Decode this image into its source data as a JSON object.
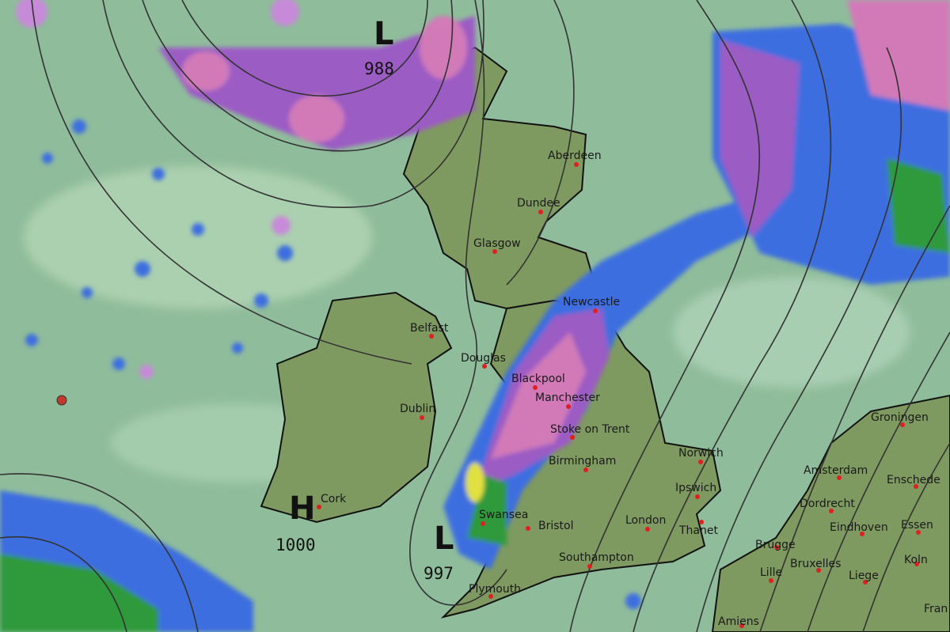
{
  "colors": {
    "sea": "#8fbc9b",
    "land": "#7f9a60",
    "rain_light": "#3c6ee0",
    "rain_heavy": "#9b5cc4",
    "rain_intense": "#d27ab8",
    "rain_moderate": "#2f9a3a"
  },
  "pressure_systems": [
    {
      "type": "L",
      "value": "988"
    },
    {
      "type": "H",
      "value": "1000"
    },
    {
      "type": "L",
      "value": "997"
    }
  ],
  "cities": [
    "Aberdeen",
    "Dundee",
    "Glasgow",
    "Newcastle",
    "Belfast",
    "Douglas",
    "Blackpool",
    "Manchester",
    "Dublin",
    "Stoke on Trent",
    "Birmingham",
    "Norwich",
    "Ipswich",
    "Cork",
    "Swansea",
    "Bristol",
    "London",
    "Thanet",
    "Southampton",
    "Plymouth",
    "Groningen",
    "Amsterdam",
    "Enschede",
    "Dordrecht",
    "Eindhoven",
    "Essen",
    "Brugge",
    "Lille",
    "Bruxelles",
    "Liege",
    "Koln",
    "Amiens",
    "Fran"
  ]
}
